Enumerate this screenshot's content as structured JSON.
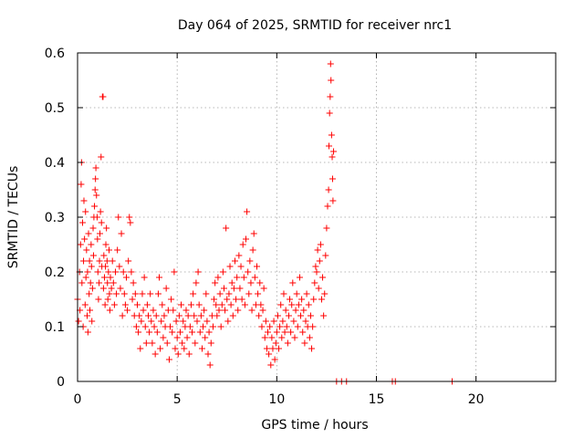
{
  "chart_data": {
    "type": "scatter",
    "title": "Day 064 of 2025, SRMTID for receiver nrc1",
    "xlabel": "GPS time / hours",
    "ylabel": "SRMTID / TECUs",
    "xlim": [
      0,
      24
    ],
    "ylim": [
      0,
      0.6
    ],
    "xticks": [
      0,
      5,
      10,
      15,
      20
    ],
    "xtick_labels": [
      "0",
      "5",
      "10",
      "15",
      "20"
    ],
    "yticks": [
      0,
      0.1,
      0.2,
      0.3,
      0.4,
      0.5,
      0.6
    ],
    "ytick_labels": [
      "0",
      "0.1",
      "0.2",
      "0.3",
      "0.4",
      "0.5",
      "0.6"
    ],
    "grid": true,
    "marker": "plus",
    "series": [
      {
        "name": "SRMTID",
        "color": "#ff0000",
        "points": [
          [
            0.0,
            0.15
          ],
          [
            0.05,
            0.11
          ],
          [
            0.1,
            0.2
          ],
          [
            0.12,
            0.13
          ],
          [
            0.15,
            0.25
          ],
          [
            0.18,
            0.36
          ],
          [
            0.2,
            0.4
          ],
          [
            0.22,
            0.18
          ],
          [
            0.25,
            0.29
          ],
          [
            0.28,
            0.1
          ],
          [
            0.3,
            0.22
          ],
          [
            0.32,
            0.33
          ],
          [
            0.35,
            0.26
          ],
          [
            0.38,
            0.14
          ],
          [
            0.4,
            0.31
          ],
          [
            0.42,
            0.19
          ],
          [
            0.45,
            0.24
          ],
          [
            0.48,
            0.12
          ],
          [
            0.5,
            0.2
          ],
          [
            0.52,
            0.09
          ],
          [
            0.55,
            0.27
          ],
          [
            0.58,
            0.16
          ],
          [
            0.6,
            0.22
          ],
          [
            0.62,
            0.13
          ],
          [
            0.65,
            0.18
          ],
          [
            0.68,
            0.25
          ],
          [
            0.7,
            0.21
          ],
          [
            0.72,
            0.11
          ],
          [
            0.75,
            0.17
          ],
          [
            0.78,
            0.28
          ],
          [
            0.8,
            0.23
          ],
          [
            0.82,
            0.3
          ],
          [
            0.85,
            0.32
          ],
          [
            0.88,
            0.35
          ],
          [
            0.9,
            0.37
          ],
          [
            0.92,
            0.39
          ],
          [
            0.95,
            0.34
          ],
          [
            0.98,
            0.3
          ],
          [
            1.0,
            0.26
          ],
          [
            1.02,
            0.2
          ],
          [
            1.05,
            0.15
          ],
          [
            1.08,
            0.18
          ],
          [
            1.1,
            0.22
          ],
          [
            1.12,
            0.27
          ],
          [
            1.15,
            0.31
          ],
          [
            1.18,
            0.41
          ],
          [
            1.2,
            0.29
          ],
          [
            1.22,
            0.21
          ],
          [
            1.25,
            0.52
          ],
          [
            1.28,
            0.52
          ],
          [
            1.3,
            0.17
          ],
          [
            1.32,
            0.23
          ],
          [
            1.35,
            0.19
          ],
          [
            1.38,
            0.14
          ],
          [
            1.4,
            0.21
          ],
          [
            1.42,
            0.25
          ],
          [
            1.45,
            0.28
          ],
          [
            1.48,
            0.22
          ],
          [
            1.5,
            0.18
          ],
          [
            1.52,
            0.15
          ],
          [
            1.55,
            0.2
          ],
          [
            1.58,
            0.24
          ],
          [
            1.6,
            0.16
          ],
          [
            1.62,
            0.13
          ],
          [
            1.65,
            0.19
          ],
          [
            1.7,
            0.17
          ],
          [
            1.75,
            0.22
          ],
          [
            1.8,
            0.18
          ],
          [
            1.85,
            0.14
          ],
          [
            1.9,
            0.2
          ],
          [
            1.95,
            0.16
          ],
          [
            2.0,
            0.24
          ],
          [
            2.05,
            0.3
          ],
          [
            2.1,
            0.21
          ],
          [
            2.15,
            0.17
          ],
          [
            2.2,
            0.27
          ],
          [
            2.25,
            0.12
          ],
          [
            2.3,
            0.2
          ],
          [
            2.35,
            0.16
          ],
          [
            2.4,
            0.14
          ],
          [
            2.45,
            0.19
          ],
          [
            2.5,
            0.13
          ],
          [
            2.55,
            0.22
          ],
          [
            2.6,
            0.3
          ],
          [
            2.65,
            0.29
          ],
          [
            2.7,
            0.2
          ],
          [
            2.75,
            0.15
          ],
          [
            2.8,
            0.18
          ],
          [
            2.85,
            0.12
          ],
          [
            2.9,
            0.16
          ],
          [
            2.95,
            0.1
          ],
          [
            3.0,
            0.14
          ],
          [
            3.05,
            0.09
          ],
          [
            3.1,
            0.12
          ],
          [
            3.15,
            0.06
          ],
          [
            3.2,
            0.11
          ],
          [
            3.25,
            0.16
          ],
          [
            3.3,
            0.13
          ],
          [
            3.35,
            0.19
          ],
          [
            3.4,
            0.1
          ],
          [
            3.45,
            0.07
          ],
          [
            3.5,
            0.14
          ],
          [
            3.55,
            0.12
          ],
          [
            3.6,
            0.09
          ],
          [
            3.65,
            0.16
          ],
          [
            3.7,
            0.11
          ],
          [
            3.75,
            0.07
          ],
          [
            3.8,
            0.13
          ],
          [
            3.85,
            0.1
          ],
          [
            3.9,
            0.05
          ],
          [
            3.95,
            0.12
          ],
          [
            4.0,
            0.09
          ],
          [
            4.05,
            0.16
          ],
          [
            4.1,
            0.19
          ],
          [
            4.15,
            0.06
          ],
          [
            4.2,
            0.11
          ],
          [
            4.25,
            0.14
          ],
          [
            4.3,
            0.08
          ],
          [
            4.35,
            0.12
          ],
          [
            4.4,
            0.1
          ],
          [
            4.45,
            0.17
          ],
          [
            4.5,
            0.07
          ],
          [
            4.55,
            0.13
          ],
          [
            4.6,
            0.04
          ],
          [
            4.65,
            0.1
          ],
          [
            4.7,
            0.15
          ],
          [
            4.75,
            0.09
          ],
          [
            4.8,
            0.13
          ],
          [
            4.85,
            0.2
          ],
          [
            4.9,
            0.06
          ],
          [
            4.95,
            0.11
          ],
          [
            5.0,
            0.08
          ],
          [
            5.05,
            0.05
          ],
          [
            5.1,
            0.12
          ],
          [
            5.15,
            0.09
          ],
          [
            5.2,
            0.14
          ],
          [
            5.25,
            0.07
          ],
          [
            5.3,
            0.11
          ],
          [
            5.35,
            0.06
          ],
          [
            5.4,
            0.1
          ],
          [
            5.45,
            0.13
          ],
          [
            5.5,
            0.08
          ],
          [
            5.55,
            0.12
          ],
          [
            5.6,
            0.05
          ],
          [
            5.65,
            0.1
          ],
          [
            5.7,
            0.14
          ],
          [
            5.75,
            0.09
          ],
          [
            5.8,
            0.16
          ],
          [
            5.85,
            0.12
          ],
          [
            5.9,
            0.07
          ],
          [
            5.95,
            0.18
          ],
          [
            6.0,
            0.11
          ],
          [
            6.05,
            0.2
          ],
          [
            6.1,
            0.14
          ],
          [
            6.15,
            0.09
          ],
          [
            6.2,
            0.12
          ],
          [
            6.25,
            0.06
          ],
          [
            6.3,
            0.1
          ],
          [
            6.35,
            0.13
          ],
          [
            6.4,
            0.08
          ],
          [
            6.45,
            0.16
          ],
          [
            6.5,
            0.11
          ],
          [
            6.55,
            0.05
          ],
          [
            6.6,
            0.09
          ],
          [
            6.65,
            0.03
          ],
          [
            6.7,
            0.07
          ],
          [
            6.75,
            0.12
          ],
          [
            6.8,
            0.1
          ],
          [
            6.85,
            0.15
          ],
          [
            6.9,
            0.18
          ],
          [
            6.95,
            0.14
          ],
          [
            7.0,
            0.12
          ],
          [
            7.05,
            0.19
          ],
          [
            7.1,
            0.13
          ],
          [
            7.15,
            0.16
          ],
          [
            7.2,
            0.1
          ],
          [
            7.25,
            0.14
          ],
          [
            7.3,
            0.2
          ],
          [
            7.35,
            0.17
          ],
          [
            7.4,
            0.13
          ],
          [
            7.45,
            0.28
          ],
          [
            7.5,
            0.15
          ],
          [
            7.55,
            0.11
          ],
          [
            7.6,
            0.16
          ],
          [
            7.65,
            0.21
          ],
          [
            7.7,
            0.14
          ],
          [
            7.75,
            0.18
          ],
          [
            7.8,
            0.12
          ],
          [
            7.85,
            0.17
          ],
          [
            7.9,
            0.22
          ],
          [
            7.95,
            0.15
          ],
          [
            8.0,
            0.19
          ],
          [
            8.05,
            0.13
          ],
          [
            8.1,
            0.23
          ],
          [
            8.15,
            0.17
          ],
          [
            8.2,
            0.21
          ],
          [
            8.25,
            0.15
          ],
          [
            8.3,
            0.25
          ],
          [
            8.35,
            0.19
          ],
          [
            8.4,
            0.14
          ],
          [
            8.45,
            0.26
          ],
          [
            8.5,
            0.31
          ],
          [
            8.55,
            0.2
          ],
          [
            8.6,
            0.16
          ],
          [
            8.65,
            0.22
          ],
          [
            8.7,
            0.18
          ],
          [
            8.75,
            0.13
          ],
          [
            8.8,
            0.24
          ],
          [
            8.85,
            0.27
          ],
          [
            8.9,
            0.19
          ],
          [
            8.95,
            0.14
          ],
          [
            9.0,
            0.21
          ],
          [
            9.05,
            0.16
          ],
          [
            9.1,
            0.12
          ],
          [
            9.15,
            0.18
          ],
          [
            9.2,
            0.14
          ],
          [
            9.25,
            0.1
          ],
          [
            9.3,
            0.13
          ],
          [
            9.35,
            0.17
          ],
          [
            9.4,
            0.08
          ],
          [
            9.45,
            0.11
          ],
          [
            9.5,
            0.06
          ],
          [
            9.55,
            0.09
          ],
          [
            9.6,
            0.05
          ],
          [
            9.65,
            0.1
          ],
          [
            9.7,
            0.03
          ],
          [
            9.75,
            0.08
          ],
          [
            9.8,
            0.06
          ],
          [
            9.85,
            0.11
          ],
          [
            9.9,
            0.04
          ],
          [
            9.95,
            0.07
          ],
          [
            10.0,
            0.09
          ],
          [
            10.05,
            0.12
          ],
          [
            10.1,
            0.06
          ],
          [
            10.15,
            0.1
          ],
          [
            10.2,
            0.14
          ],
          [
            10.25,
            0.08
          ],
          [
            10.3,
            0.11
          ],
          [
            10.35,
            0.16
          ],
          [
            10.4,
            0.09
          ],
          [
            10.45,
            0.13
          ],
          [
            10.5,
            0.1
          ],
          [
            10.55,
            0.07
          ],
          [
            10.6,
            0.12
          ],
          [
            10.65,
            0.15
          ],
          [
            10.7,
            0.09
          ],
          [
            10.75,
            0.14
          ],
          [
            10.8,
            0.18
          ],
          [
            10.85,
            0.11
          ],
          [
            10.9,
            0.08
          ],
          [
            10.95,
            0.13
          ],
          [
            11.0,
            0.16
          ],
          [
            11.05,
            0.1
          ],
          [
            11.1,
            0.14
          ],
          [
            11.15,
            0.19
          ],
          [
            11.2,
            0.12
          ],
          [
            11.25,
            0.15
          ],
          [
            11.3,
            0.09
          ],
          [
            11.35,
            0.13
          ],
          [
            11.4,
            0.07
          ],
          [
            11.45,
            0.11
          ],
          [
            11.5,
            0.16
          ],
          [
            11.55,
            0.1
          ],
          [
            11.6,
            0.14
          ],
          [
            11.65,
            0.08
          ],
          [
            11.7,
            0.12
          ],
          [
            11.75,
            0.06
          ],
          [
            11.8,
            0.1
          ],
          [
            11.85,
            0.15
          ],
          [
            11.9,
            0.18
          ],
          [
            11.95,
            0.21
          ],
          [
            12.0,
            0.2
          ],
          [
            12.05,
            0.24
          ],
          [
            12.1,
            0.17
          ],
          [
            12.15,
            0.22
          ],
          [
            12.2,
            0.25
          ],
          [
            12.25,
            0.15
          ],
          [
            12.3,
            0.19
          ],
          [
            12.35,
            0.12
          ],
          [
            12.4,
            0.16
          ],
          [
            12.45,
            0.23
          ],
          [
            12.5,
            0.28
          ],
          [
            12.55,
            0.32
          ],
          [
            12.6,
            0.35
          ],
          [
            12.62,
            0.43
          ],
          [
            12.65,
            0.49
          ],
          [
            12.68,
            0.52
          ],
          [
            12.7,
            0.58
          ],
          [
            12.72,
            0.55
          ],
          [
            12.75,
            0.45
          ],
          [
            12.78,
            0.41
          ],
          [
            12.8,
            0.37
          ],
          [
            12.82,
            0.33
          ],
          [
            12.85,
            0.42
          ],
          [
            13.0,
            0.0
          ],
          [
            13.25,
            0.0
          ],
          [
            13.5,
            0.0
          ],
          [
            15.8,
            0.0
          ],
          [
            15.95,
            0.0
          ],
          [
            18.8,
            0.0
          ]
        ]
      }
    ]
  }
}
